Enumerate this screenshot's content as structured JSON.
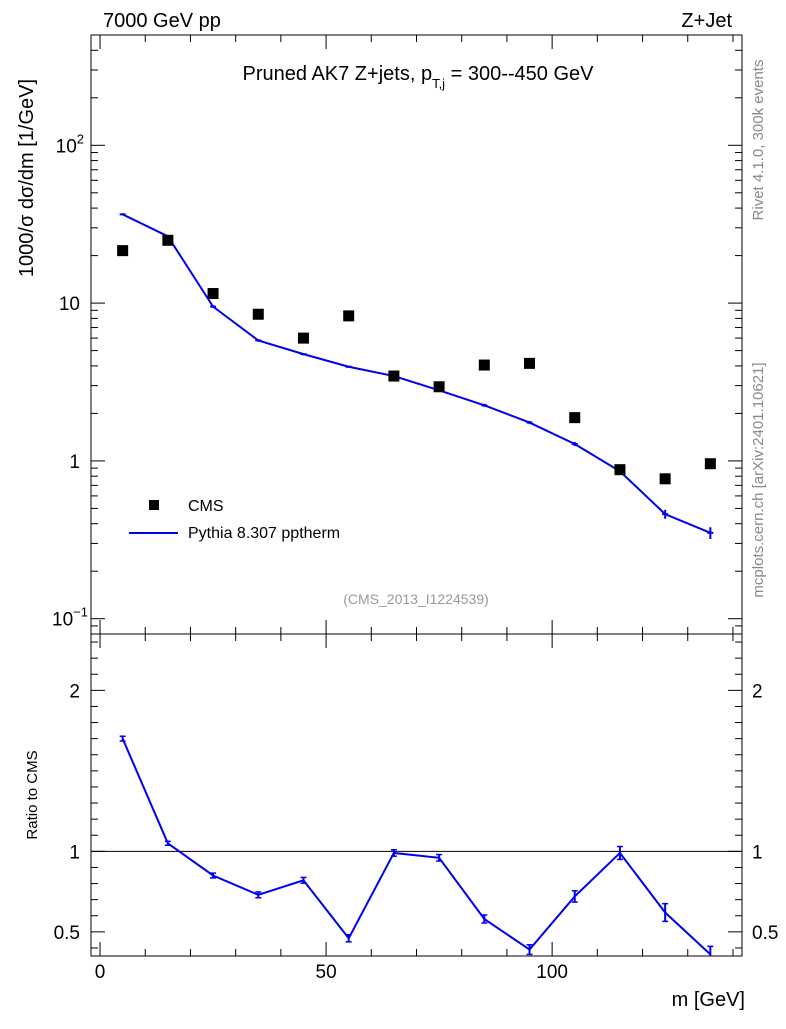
{
  "header": {
    "left": "7000 GeV pp",
    "right": "Z+Jet"
  },
  "side_labels": {
    "rivet": "Rivet 4.1.0,  300k events",
    "mcplots": "mcplots.cern.ch [arXiv:2401.10621]"
  },
  "colors": {
    "data": "#000000",
    "mc": "#0000ee",
    "analysis": "#999999"
  },
  "chart_data": [
    {
      "type": "scatter+line",
      "panel": "main",
      "title_main": "Pruned AK7 Z+jets, p",
      "title_sub": "T,j",
      "title_tail": " = 300--450 GeV",
      "ylabel": "1000/σ  dσ/dm [1/GeV]",
      "yscale": "log",
      "ylim": [
        0.08,
        500
      ],
      "xlim": [
        -2,
        142
      ],
      "y_ticks": [
        {
          "value": 100,
          "label": "10",
          "exp": "2"
        },
        {
          "value": 10,
          "label": "10",
          "exp": ""
        },
        {
          "value": 1,
          "label": "1",
          "exp": ""
        },
        {
          "value": 0.1,
          "label": "10",
          "exp": "−1"
        }
      ],
      "analysis_id": "(CMS_2013_I1224539)",
      "legend": [
        {
          "name": "CMS",
          "style": "marker"
        },
        {
          "name": "Pythia 8.307 pptherm",
          "style": "line"
        }
      ],
      "x_edges": [
        0,
        10,
        20,
        30,
        40,
        50,
        60,
        70,
        80,
        90,
        100,
        110,
        120,
        130,
        140
      ],
      "series": [
        {
          "name": "CMS",
          "x": [
            5,
            15,
            25,
            35,
            45,
            55,
            65,
            75,
            85,
            95,
            105,
            115,
            125,
            135
          ],
          "values": [
            21.5,
            25,
            11.5,
            8.5,
            6.0,
            8.3,
            3.45,
            2.95,
            4.05,
            4.15,
            1.88,
            0.88,
            0.77,
            0.96
          ]
        },
        {
          "name": "Pythia 8.307 pptherm",
          "x": [
            5,
            15,
            25,
            35,
            45,
            55,
            65,
            75,
            85,
            95,
            105,
            115,
            125,
            135
          ],
          "values": [
            36.5,
            26.5,
            9.5,
            5.8,
            4.75,
            3.95,
            3.45,
            2.8,
            2.25,
            1.75,
            1.28,
            0.86,
            0.46,
            0.35
          ],
          "errors": [
            0.6,
            0.4,
            0.2,
            0.1,
            0.08,
            0.06,
            0.06,
            0.05,
            0.05,
            0.04,
            0.04,
            0.03,
            0.03,
            0.03
          ]
        }
      ]
    },
    {
      "type": "line",
      "panel": "ratio",
      "ylabel": "Ratio to CMS",
      "xlabel": "m [GeV]",
      "ylim": [
        0.35,
        2.35
      ],
      "xlim": [
        -2,
        142
      ],
      "reference": 1,
      "y_ticks": [
        {
          "value": 2,
          "label": "2"
        },
        {
          "value": 1,
          "label": "1"
        },
        {
          "value": 0.5,
          "label": "0.5"
        }
      ],
      "x_ticks": [
        {
          "value": 0,
          "label": "0"
        },
        {
          "value": 50,
          "label": "50"
        },
        {
          "value": 100,
          "label": "100"
        }
      ],
      "series": [
        {
          "name": "Pythia 8.307 pptherm",
          "x": [
            5,
            15,
            25,
            35,
            45,
            55,
            65,
            75,
            85,
            95,
            105,
            115,
            125,
            135
          ],
          "values": [
            1.7,
            1.05,
            0.85,
            0.73,
            0.82,
            0.46,
            0.99,
            0.96,
            0.58,
            0.39,
            0.72,
            0.99,
            0.62,
            0.36
          ],
          "errors": [
            0.015,
            0.012,
            0.015,
            0.018,
            0.018,
            0.022,
            0.02,
            0.02,
            0.025,
            0.03,
            0.035,
            0.04,
            0.055,
            0.05
          ]
        }
      ]
    }
  ]
}
